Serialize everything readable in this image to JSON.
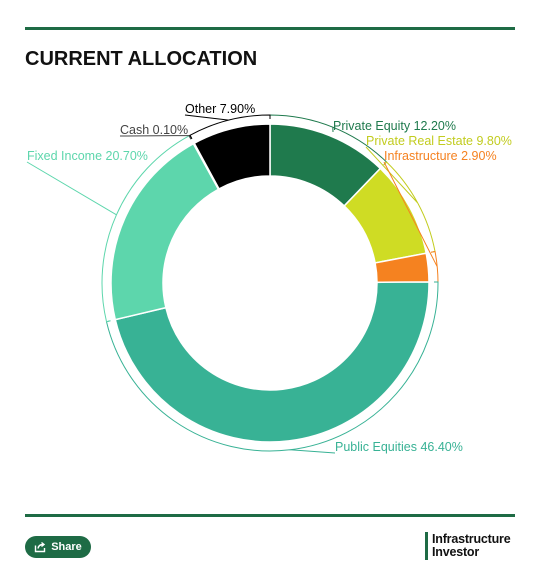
{
  "header": {
    "title": "CURRENT ALLOCATION"
  },
  "footer": {
    "share_label": "Share",
    "logo_line1": "Infrastructure",
    "logo_line2": "Investor"
  },
  "colors": {
    "brand": "#1e6b45"
  },
  "chart_data": {
    "type": "pie",
    "style": "donut",
    "unit": "%",
    "slices": [
      {
        "label": "Private Equity",
        "value": 12.2,
        "display": "12.20%",
        "color": "#1f7a4d",
        "label_color": "#1f7a4d"
      },
      {
        "label": "Private Real Estate",
        "value": 9.8,
        "display": "9.80%",
        "color": "#cfdc24",
        "label_color": "#c2cc1f"
      },
      {
        "label": "Infrastructure",
        "value": 2.9,
        "display": "2.90%",
        "color": "#f58220",
        "label_color": "#f58220"
      },
      {
        "label": "Public Equities",
        "value": 46.4,
        "display": "46.40%",
        "color": "#38b295",
        "label_color": "#38b295"
      },
      {
        "label": "Fixed Income",
        "value": 20.7,
        "display": "20.70%",
        "color": "#5dd6ac",
        "label_color": "#5dd6ac"
      },
      {
        "label": "Cash",
        "value": 0.1,
        "display": "0.10%",
        "color": "#6b6b6b",
        "label_color": "#444444"
      },
      {
        "label": "Other",
        "value": 7.9,
        "display": "7.90%",
        "color": "#000000",
        "label_color": "#000000"
      }
    ]
  }
}
